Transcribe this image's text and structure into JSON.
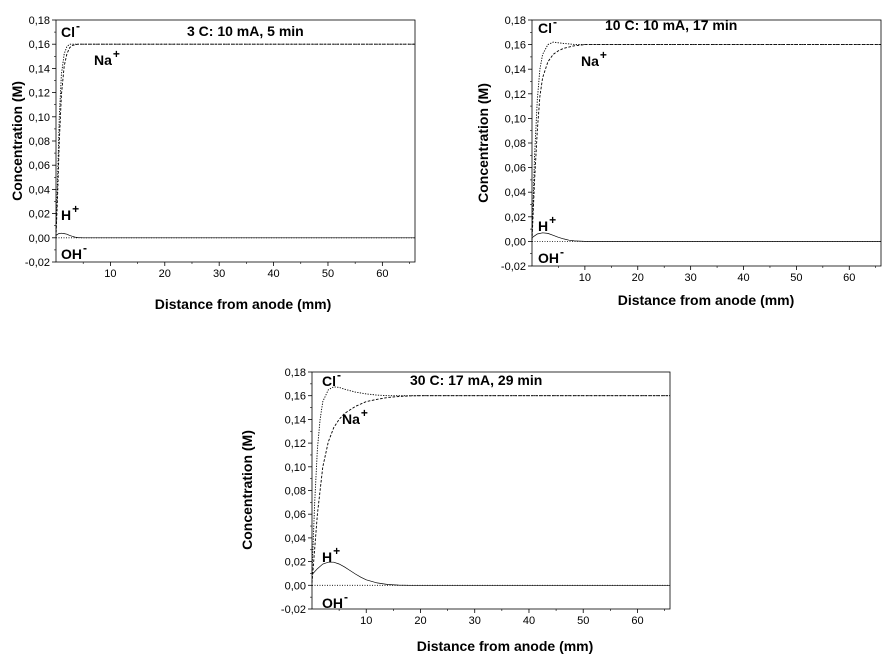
{
  "chart_data": [
    {
      "type": "line",
      "title": "3 C: 10 mA, 5 min",
      "xlabel": "Distance from anode (mm)",
      "ylabel": "Concentration (M)",
      "xlim": [
        0,
        66
      ],
      "ylim": [
        -0.02,
        0.18
      ],
      "x_ticks": [
        "10",
        "20",
        "30",
        "40",
        "50",
        "60"
      ],
      "y_ticks": [
        "-0,02",
        "0,00",
        "0,02",
        "0,04",
        "0,06",
        "0,08",
        "0,10",
        "0,12",
        "0,14",
        "0,16",
        "0,18"
      ],
      "series_labels": [
        {
          "base": "Cl",
          "sup": "-"
        },
        {
          "base": "Na",
          "sup": "+"
        },
        {
          "base": "H",
          "sup": "+"
        },
        {
          "base": "OH",
          "sup": "-"
        }
      ],
      "series": [
        {
          "name": "Cl-",
          "x": [
            0,
            0.3,
            0.6,
            1,
            1.5,
            2,
            2.5,
            3,
            4,
            6,
            66
          ],
          "y": [
            0.005,
            0.05,
            0.1,
            0.135,
            0.152,
            0.158,
            0.16,
            0.16,
            0.16,
            0.16,
            0.16
          ]
        },
        {
          "name": "Na+",
          "x": [
            0,
            0.3,
            0.6,
            1,
            1.5,
            2,
            2.5,
            3,
            4,
            6,
            66
          ],
          "y": [
            0.001,
            0.035,
            0.08,
            0.118,
            0.142,
            0.152,
            0.157,
            0.159,
            0.16,
            0.16,
            0.16
          ]
        },
        {
          "name": "H+",
          "x": [
            0,
            0.5,
            1,
            1.5,
            2,
            2.5,
            3,
            3.5,
            4,
            5,
            66
          ],
          "y": [
            0.002,
            0.0035,
            0.0038,
            0.0035,
            0.003,
            0.002,
            0.0012,
            0.0006,
            0.0002,
            0,
            0
          ]
        },
        {
          "name": "OH-",
          "x": [
            0,
            66
          ],
          "y": [
            0,
            0
          ]
        }
      ]
    },
    {
      "type": "line",
      "title": "10 C: 10 mA, 17 min",
      "xlabel": "Distance from anode (mm)",
      "ylabel": "Concentration (M)",
      "xlim": [
        0,
        66
      ],
      "ylim": [
        -0.02,
        0.18
      ],
      "x_ticks": [
        "10",
        "20",
        "30",
        "40",
        "50",
        "60"
      ],
      "y_ticks": [
        "-0,02",
        "0,00",
        "0,02",
        "0,04",
        "0,06",
        "0,08",
        "0,10",
        "0,12",
        "0,14",
        "0,16",
        "0,18"
      ],
      "series_labels": [
        {
          "base": "Cl",
          "sup": "-"
        },
        {
          "base": "Na",
          "sup": "+"
        },
        {
          "base": "H",
          "sup": "+"
        },
        {
          "base": "OH",
          "sup": "-"
        }
      ],
      "series": [
        {
          "name": "Cl-",
          "x": [
            0,
            0.5,
            1,
            1.5,
            2,
            3,
            4,
            5,
            6,
            8,
            10,
            66
          ],
          "y": [
            0.005,
            0.07,
            0.115,
            0.14,
            0.152,
            0.16,
            0.162,
            0.1615,
            0.161,
            0.1602,
            0.16,
            0.16
          ]
        },
        {
          "name": "Na+",
          "x": [
            0,
            0.5,
            1,
            1.5,
            2,
            3,
            4,
            5,
            6,
            8,
            10,
            66
          ],
          "y": [
            0.001,
            0.05,
            0.09,
            0.118,
            0.133,
            0.146,
            0.152,
            0.155,
            0.157,
            0.159,
            0.16,
            0.16
          ]
        },
        {
          "name": "H+",
          "x": [
            0,
            1,
            2,
            3,
            4,
            5,
            6,
            7,
            8,
            10,
            66
          ],
          "y": [
            0.003,
            0.006,
            0.007,
            0.0065,
            0.005,
            0.0033,
            0.002,
            0.001,
            0.0004,
            0,
            0
          ]
        },
        {
          "name": "OH-",
          "x": [
            0,
            66
          ],
          "y": [
            0,
            0
          ]
        }
      ]
    },
    {
      "type": "line",
      "title": "30 C: 17 mA, 29 min",
      "xlabel": "Distance from anode (mm)",
      "ylabel": "Concentration (M)",
      "xlim": [
        0,
        66
      ],
      "ylim": [
        -0.02,
        0.18
      ],
      "x_ticks": [
        "10",
        "20",
        "30",
        "40",
        "50",
        "60"
      ],
      "y_ticks": [
        "-0,02",
        "0,00",
        "0,02",
        "0,04",
        "0,06",
        "0,08",
        "0,10",
        "0,12",
        "0,14",
        "0,16",
        "0,18"
      ],
      "series_labels": [
        {
          "base": "Cl",
          "sup": "-"
        },
        {
          "base": "Na",
          "sup": "+"
        },
        {
          "base": "H",
          "sup": "+"
        },
        {
          "base": "OH",
          "sup": "-"
        }
      ],
      "series": [
        {
          "name": "Cl-",
          "x": [
            0,
            0.5,
            1,
            1.5,
            2,
            3,
            4,
            5,
            6,
            8,
            10,
            12,
            14,
            16,
            66
          ],
          "y": [
            0.01,
            0.07,
            0.115,
            0.14,
            0.155,
            0.165,
            0.1675,
            0.167,
            0.1655,
            0.163,
            0.1615,
            0.1605,
            0.16,
            0.16,
            0.16
          ]
        },
        {
          "name": "Na+",
          "x": [
            0,
            1,
            2,
            3,
            4,
            5,
            6,
            8,
            10,
            12,
            14,
            16,
            18,
            20,
            66
          ],
          "y": [
            0.002,
            0.06,
            0.1,
            0.121,
            0.133,
            0.14,
            0.145,
            0.151,
            0.155,
            0.157,
            0.1585,
            0.1593,
            0.1598,
            0.16,
            0.16
          ]
        },
        {
          "name": "H+",
          "x": [
            0,
            1,
            2,
            3,
            4,
            5,
            6,
            7,
            8,
            9,
            10,
            12,
            14,
            16,
            18,
            66
          ],
          "y": [
            0.009,
            0.014,
            0.018,
            0.0195,
            0.0195,
            0.018,
            0.0155,
            0.0125,
            0.0095,
            0.0068,
            0.0046,
            0.002,
            0.0007,
            0.0002,
            0,
            0
          ]
        },
        {
          "name": "OH-",
          "x": [
            0,
            66
          ],
          "y": [
            0,
            0
          ]
        }
      ]
    }
  ]
}
